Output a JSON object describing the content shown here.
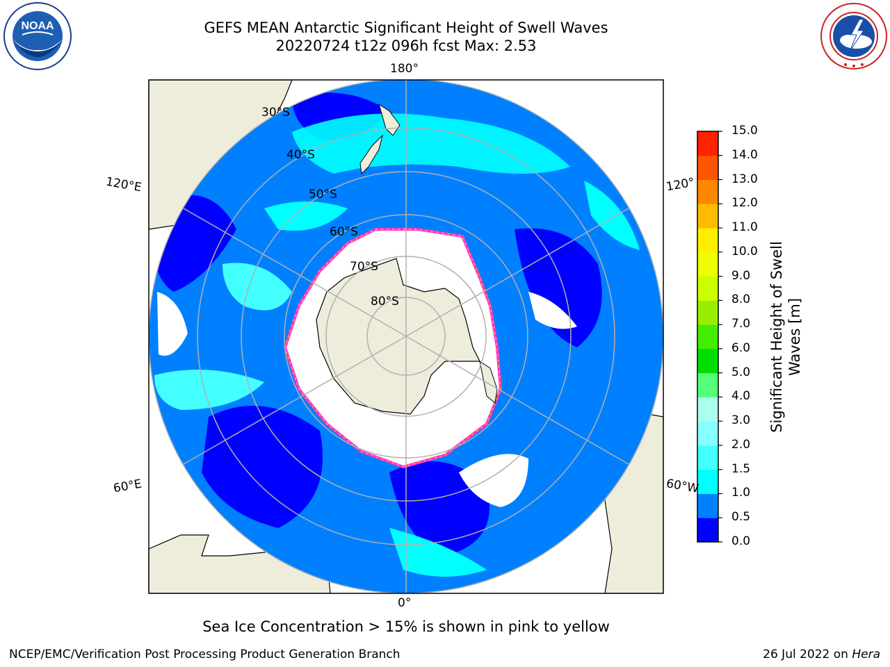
{
  "header": {
    "title_line1": "GEFS MEAN Antarctic Significant Height of Swell Waves",
    "title_line2": "20220724 t12z 096h fcst   Max: 2.53"
  },
  "logos": {
    "left": {
      "name": "noaa-logo",
      "text": "NOAA",
      "ring_text": "NATIONAL OCEANIC AND ATMOSPHERIC ADMINISTRATION · U.S. DEPARTMENT OF COMMERCE"
    },
    "right": {
      "name": "nws-logo",
      "ring_text": "NATIONAL WEATHER SERVICE"
    }
  },
  "map": {
    "projection": "south-polar-stereographic",
    "longitude_labels": {
      "top": "180°",
      "bottom": "0°",
      "upper_left": "120°E",
      "upper_right": "120°",
      "lower_left": "60°E",
      "lower_right": "60°W"
    },
    "latitude_labels": [
      "30°S",
      "40°S",
      "50°S",
      "60°S",
      "70°S",
      "80°S"
    ],
    "colors": {
      "land": "#eeeddb",
      "ocean_low": "#0000ff",
      "ocean_mid": "#0080ff",
      "ocean_high": "#00ffff",
      "ice": "#ffffff",
      "ice_edge": "#ff33cc",
      "gridline": "#b0b0b0"
    }
  },
  "chart_data": {
    "type": "heatmap",
    "title": "GEFS MEAN Antarctic Significant Height of Swell Waves",
    "subtitle": "20220724 t12z 096h fcst   Max: 2.53",
    "value_max": 2.53,
    "colorbar": {
      "label": "Significant Height of Swell Waves [m]",
      "ticks": [
        "0.0",
        "0.5",
        "1.0",
        "1.5",
        "2.0",
        "3.0",
        "4.0",
        "5.0",
        "6.0",
        "7.0",
        "8.0",
        "9.0",
        "10.0",
        "11.0",
        "12.0",
        "13.0",
        "14.0",
        "15.0"
      ],
      "colors": [
        "#0000ff",
        "#0080ff",
        "#00ffff",
        "#44ffff",
        "#88ffff",
        "#aaffee",
        "#55ff77",
        "#00dd00",
        "#44ee00",
        "#99ee00",
        "#ccff00",
        "#eeff00",
        "#ffee00",
        "#ffbb00",
        "#ff8800",
        "#ff5500",
        "#ff2200"
      ]
    }
  },
  "annotations": {
    "sea_ice_note": "Sea Ice Concentration > 15% is shown in pink to yellow"
  },
  "footer": {
    "left": "NCEP/EMC/Verification Post Processing Product Generation Branch",
    "date": "26 Jul 2022 on ",
    "machine": "Hera"
  }
}
